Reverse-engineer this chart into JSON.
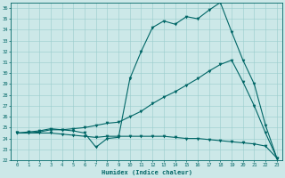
{
  "xlabel": "Humidex (Indice chaleur)",
  "bg_color": "#cce8e8",
  "line_color": "#006666",
  "grid_color": "#99cccc",
  "xlim": [
    -0.5,
    23.5
  ],
  "ylim": [
    22,
    36.5
  ],
  "xticks": [
    0,
    1,
    2,
    3,
    4,
    5,
    6,
    7,
    8,
    9,
    10,
    11,
    12,
    13,
    14,
    15,
    16,
    17,
    18,
    19,
    20,
    21,
    22,
    23
  ],
  "yticks": [
    22,
    23,
    24,
    25,
    26,
    27,
    28,
    29,
    30,
    31,
    32,
    33,
    34,
    35,
    36
  ],
  "line1_x": [
    0,
    1,
    2,
    3,
    4,
    5,
    6,
    7,
    8,
    9,
    10,
    11,
    12,
    13,
    14,
    15,
    16,
    17,
    18,
    19,
    20,
    21,
    22,
    23
  ],
  "line1_y": [
    24.5,
    24.6,
    24.7,
    24.9,
    24.8,
    24.7,
    24.5,
    23.2,
    24.0,
    24.1,
    29.5,
    32.0,
    34.2,
    34.8,
    34.5,
    35.2,
    35.0,
    35.8,
    36.5,
    33.8,
    31.2,
    29.0,
    25.2,
    22.2
  ],
  "line2_x": [
    0,
    1,
    2,
    3,
    4,
    5,
    6,
    7,
    8,
    9,
    10,
    11,
    12,
    13,
    14,
    15,
    16,
    17,
    18,
    19,
    20,
    21,
    22,
    23
  ],
  "line2_y": [
    24.5,
    24.5,
    24.6,
    24.8,
    24.8,
    24.9,
    25.0,
    25.2,
    25.4,
    25.5,
    26.0,
    26.5,
    27.2,
    27.8,
    28.3,
    28.9,
    29.5,
    30.2,
    30.8,
    31.2,
    29.2,
    27.0,
    24.5,
    22.2
  ],
  "line3_x": [
    0,
    1,
    2,
    3,
    4,
    5,
    6,
    7,
    8,
    9,
    10,
    11,
    12,
    13,
    14,
    15,
    16,
    17,
    18,
    19,
    20,
    21,
    22,
    23
  ],
  "line3_y": [
    24.5,
    24.5,
    24.5,
    24.5,
    24.4,
    24.3,
    24.2,
    24.1,
    24.2,
    24.2,
    24.2,
    24.2,
    24.2,
    24.2,
    24.1,
    24.0,
    24.0,
    23.9,
    23.8,
    23.7,
    23.6,
    23.5,
    23.3,
    22.2
  ]
}
